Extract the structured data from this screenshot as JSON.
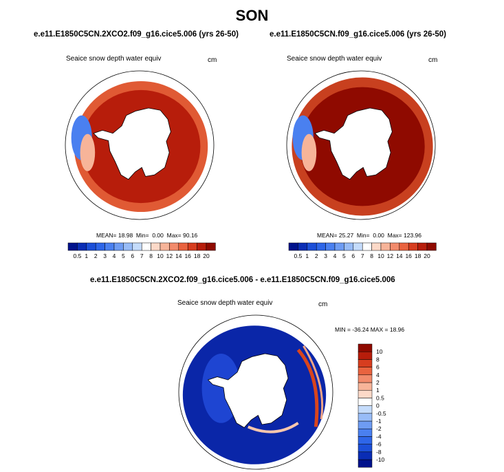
{
  "season": "SON",
  "panels": [
    {
      "case_title": "e.e11.E1850C5CN.2XCO2.f09_g16.cice5.006 (yrs 26-50)",
      "variable": "Seaice snow depth water equiv",
      "units": "cm",
      "stats": {
        "mean_label": "MEAN=",
        "mean": "18.98",
        "min_label": "Min=",
        "min": "0.00",
        "max_label": "Max=",
        "max": "90.16"
      }
    },
    {
      "case_title": "e.e11.E1850C5CN.f09_g16.cice5.006 (yrs 26-50)",
      "variable": "Seaice snow depth water equiv",
      "units": "cm",
      "stats": {
        "mean_label": "MEAN=",
        "mean": "25.27",
        "min_label": "Min=",
        "min": "0.00",
        "max_label": "Max=",
        "max": "123.96"
      }
    }
  ],
  "diff_panel": {
    "title": "e.e11.E1850C5CN.2XCO2.f09_g16.cice5.006 - e.e11.E1850C5CN.f09_g16.cice5.006",
    "variable": "Seaice snow depth water equiv",
    "units": "cm",
    "minmax_text": "MIN = -36.24  MAX =  18.96"
  },
  "chart_data": [
    {
      "type": "heatmap",
      "projection": "south-polar-stereographic",
      "title": "e.e11.E1850C5CN.2XCO2.f09_g16.cice5.006 (yrs 26-50)",
      "colorbar_levels": [
        "0.5",
        "1",
        "2",
        "3",
        "4",
        "5",
        "6",
        "7",
        "8",
        "10",
        "12",
        "14",
        "16",
        "18",
        "20"
      ],
      "colorbar_colors": [
        "#00128c",
        "#0a2db5",
        "#1c4fd8",
        "#2e66e8",
        "#4a80f0",
        "#6e9cf3",
        "#98bcf7",
        "#c5dcfb",
        "#ffffff",
        "#fcd9c8",
        "#f7b499",
        "#f28b6c",
        "#e9633f",
        "#d73d1f",
        "#b71d0b",
        "#8f0a00"
      ],
      "mean": 18.98,
      "min": 0.0,
      "max": 90.16
    },
    {
      "type": "heatmap",
      "projection": "south-polar-stereographic",
      "title": "e.e11.E1850C5CN.f09_g16.cice5.006 (yrs 26-50)",
      "colorbar_levels": [
        "0.5",
        "1",
        "2",
        "3",
        "4",
        "5",
        "6",
        "7",
        "8",
        "10",
        "12",
        "14",
        "16",
        "18",
        "20"
      ],
      "colorbar_colors": [
        "#00128c",
        "#0a2db5",
        "#1c4fd8",
        "#2e66e8",
        "#4a80f0",
        "#6e9cf3",
        "#98bcf7",
        "#c5dcfb",
        "#ffffff",
        "#fcd9c8",
        "#f7b499",
        "#f28b6c",
        "#e9633f",
        "#d73d1f",
        "#b71d0b",
        "#8f0a00"
      ],
      "mean": 25.27,
      "min": 0.0,
      "max": 123.96
    },
    {
      "type": "heatmap",
      "projection": "south-polar-stereographic",
      "title": "e.e11.E1850C5CN.2XCO2.f09_g16.cice5.006 - e.e11.E1850C5CN.f09_g16.cice5.006",
      "colorbar_levels": [
        "-10",
        "-8",
        "-6",
        "-4",
        "-2",
        "-1",
        "-0.5",
        "0",
        "0.5",
        "1",
        "2",
        "4",
        "6",
        "8",
        "10"
      ],
      "colorbar_colors": [
        "#00128c",
        "#0a2db5",
        "#1c4fd8",
        "#2e66e8",
        "#4a80f0",
        "#6e9cf3",
        "#98bcf7",
        "#c5dcfb",
        "#ffffff",
        "#fcd9c8",
        "#f7b499",
        "#f28b6c",
        "#e9633f",
        "#d73d1f",
        "#b71d0b",
        "#8f0a00"
      ],
      "min": -36.24,
      "max": 18.96
    }
  ]
}
